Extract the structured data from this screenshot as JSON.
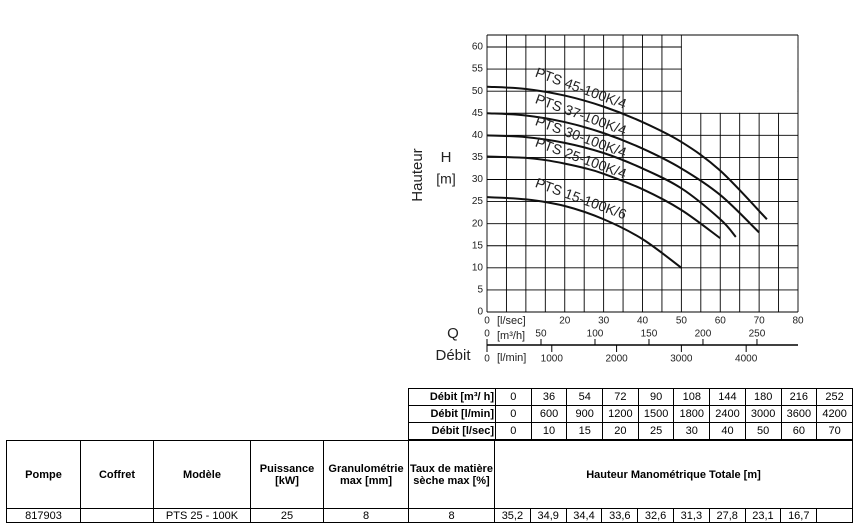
{
  "chart_data": {
    "type": "line",
    "y_label": "Hauteur",
    "y_symbol": "H",
    "y_unit": "[m]",
    "x_symbol": "Q",
    "x_label": "Débit",
    "xlim": [
      0,
      80
    ],
    "x_unit": "[l/sec]",
    "xticks": [
      0,
      20,
      30,
      40,
      50,
      60,
      70,
      80
    ],
    "xgrid": [
      0,
      5,
      10,
      15,
      20,
      25,
      30,
      35,
      40,
      45,
      50,
      55,
      60,
      65,
      70,
      75,
      80
    ],
    "x2lim": [
      0,
      288
    ],
    "x2_unit": "[m³/h]",
    "x2ticks": [
      0,
      50,
      100,
      150,
      200,
      250
    ],
    "x3lim": [
      0,
      4800
    ],
    "x3_unit": "[l/min]",
    "x3ticks": [
      0,
      1000,
      2000,
      3000,
      4000
    ],
    "ylim": [
      0,
      60
    ],
    "yticks": [
      0,
      5,
      10,
      15,
      20,
      25,
      30,
      35,
      40,
      45,
      50,
      55,
      60
    ],
    "grid": true,
    "series": [
      {
        "name": "PTS 45-100K/4",
        "color": "#111111",
        "x": [
          0,
          10,
          20,
          30,
          40,
          50,
          60,
          72
        ],
        "values": [
          51,
          50.5,
          49,
          46.5,
          43,
          38.5,
          32,
          21
        ]
      },
      {
        "name": "PTS 37-100K/4",
        "color": "#111111",
        "x": [
          0,
          10,
          20,
          30,
          40,
          50,
          60,
          70
        ],
        "values": [
          45,
          44.5,
          43,
          40.5,
          37,
          32.5,
          26.5,
          18
        ]
      },
      {
        "name": "PTS 30-100K/4",
        "color": "#111111",
        "x": [
          0,
          10,
          20,
          30,
          40,
          50,
          60,
          64
        ],
        "values": [
          40,
          39.6,
          38.3,
          36,
          32.5,
          28,
          21,
          17
        ]
      },
      {
        "name": "PTS 25-100K/4",
        "color": "#111111",
        "x": [
          0,
          10,
          15,
          20,
          25,
          30,
          40,
          50,
          60
        ],
        "values": [
          35.2,
          34.9,
          34.4,
          33.6,
          32.6,
          31.3,
          27.8,
          23.1,
          16.7
        ]
      },
      {
        "name": "PTS 15-100K/6",
        "color": "#111111",
        "x": [
          0,
          10,
          20,
          30,
          40,
          50
        ],
        "values": [
          26,
          25.5,
          24,
          21,
          16.5,
          10
        ]
      }
    ]
  },
  "flow_table": {
    "rows": [
      [
        "Débit [m³/ h]",
        "0",
        "36",
        "54",
        "72",
        "90",
        "108",
        "144",
        "180",
        "216",
        "252"
      ],
      [
        "Débit [l/min]",
        "0",
        "600",
        "900",
        "1200",
        "1500",
        "1800",
        "2400",
        "3000",
        "3600",
        "4200"
      ],
      [
        "Débit [l/sec]",
        "0",
        "10",
        "15",
        "20",
        "25",
        "30",
        "40",
        "50",
        "60",
        "70"
      ]
    ]
  },
  "pump_table": {
    "headers": [
      "Pompe",
      "Coffret",
      "Modèle",
      "Puissance [kW]",
      "Granulométrie max [mm]",
      "Taux de matière sèche max [%]",
      "Hauteur Manométrique Totale [m]"
    ],
    "row": {
      "pompe": "817903",
      "modele": "PTS 25 - 100K",
      "puissance": "25",
      "granulometrie": "8",
      "taux": "8",
      "hmt": [
        "35,2",
        "34,9",
        "34,4",
        "33,6",
        "32,6",
        "31,3",
        "27,8",
        "23,1",
        "16,7"
      ]
    }
  }
}
